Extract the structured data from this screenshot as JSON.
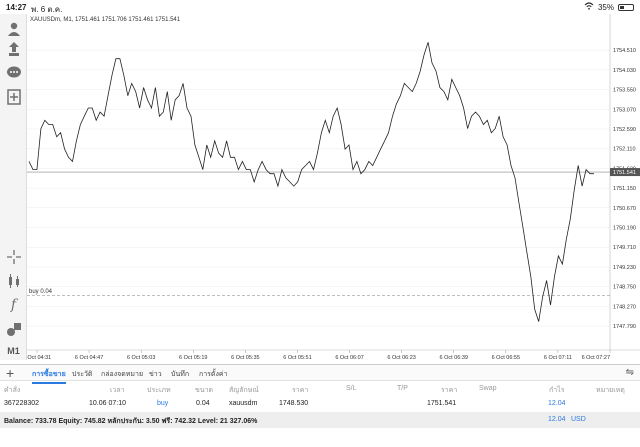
{
  "status": {
    "time": "14:27",
    "date": "พ. 6 ต.ค.",
    "battery": "35%"
  },
  "chart": {
    "symbol_line": "XAUUSDm, M1, 1751.461 1751.706 1751.461 1751.541",
    "order_line_label": "buy 0.04",
    "current_price_label": "1751.541",
    "timeframe": "M1"
  },
  "chart_data": {
    "type": "line",
    "symbol": "XAUUSDm",
    "ylim": [
      1747.5,
      1755.0
    ],
    "y_ticks": [
      "1754.510",
      "1754.030",
      "1753.550",
      "1753.070",
      "1752.590",
      "1752.110",
      "1751.630",
      "1751.150",
      "1750.670",
      "1750.190",
      "1749.710",
      "1749.230",
      "1748.750",
      "1748.270",
      "1747.790"
    ],
    "x_ticks": [
      "6 Oct 04:31",
      "6 Oct 04:47",
      "6 Oct 05:03",
      "6 Oct 05:19",
      "6 Oct 05:35",
      "6 Oct 05:51",
      "6 Oct 06:07",
      "6 Oct 06:23",
      "6 Oct 06:39",
      "6 Oct 06:55",
      "6 Oct 07:11",
      "6 Oct 07:27"
    ],
    "current_price": 1751.541,
    "buy_level": 1748.53,
    "x": [
      0,
      2,
      4,
      6,
      8,
      10,
      12,
      14,
      16,
      18,
      20,
      22,
      24,
      26,
      28,
      30,
      32,
      34,
      36,
      38,
      40,
      42,
      44,
      46,
      48,
      50,
      52,
      54,
      56,
      58,
      60,
      62,
      64,
      66,
      68,
      70,
      72,
      74,
      76,
      78,
      80,
      82,
      84,
      86,
      88,
      90,
      92,
      94,
      96,
      98,
      100,
      102,
      104,
      106,
      108,
      110,
      112,
      114,
      116,
      118,
      120,
      122,
      124,
      126,
      128,
      130,
      132,
      134,
      136,
      138,
      140,
      142,
      144,
      146,
      148,
      150,
      152,
      154,
      156,
      158,
      160,
      162,
      164,
      166,
      168,
      170,
      172,
      174,
      176,
      178,
      180,
      182,
      184,
      186,
      188,
      190,
      192,
      194,
      196,
      198,
      200,
      202,
      204,
      206,
      208,
      210,
      212,
      214,
      216,
      218,
      220,
      222,
      224,
      226,
      228,
      230,
      232,
      234,
      236,
      238,
      240,
      242,
      244,
      246,
      248,
      250,
      252,
      254,
      256,
      258,
      260,
      262,
      264,
      266,
      268,
      270,
      272,
      274,
      276,
      278,
      280,
      282,
      284,
      286
    ],
    "values": [
      1751.8,
      1751.6,
      1751.6,
      1752.6,
      1752.8,
      1752.7,
      1752.7,
      1752.4,
      1752.5,
      1752.1,
      1751.9,
      1751.8,
      1752.3,
      1752.7,
      1752.9,
      1753.1,
      1753.1,
      1752.8,
      1753.0,
      1752.9,
      1753.4,
      1753.9,
      1754.3,
      1754.3,
      1753.9,
      1753.4,
      1753.7,
      1753.5,
      1753.1,
      1753.6,
      1753.3,
      1753.1,
      1753.6,
      1752.9,
      1753.0,
      1753.5,
      1752.8,
      1753.3,
      1753.4,
      1753.7,
      1753.1,
      1752.9,
      1752.2,
      1751.9,
      1751.6,
      1752.2,
      1751.9,
      1752.3,
      1752.0,
      1751.9,
      1752.3,
      1751.9,
      1751.9,
      1751.6,
      1751.8,
      1751.6,
      1751.6,
      1751.3,
      1751.6,
      1751.8,
      1751.6,
      1751.5,
      1751.5,
      1751.2,
      1751.6,
      1751.4,
      1751.3,
      1751.2,
      1751.3,
      1751.6,
      1751.7,
      1751.8,
      1751.6,
      1752.0,
      1752.5,
      1752.8,
      1752.5,
      1752.9,
      1753.1,
      1752.7,
      1752.1,
      1752.2,
      1751.6,
      1751.8,
      1751.5,
      1751.6,
      1751.8,
      1751.7,
      1751.9,
      1752.1,
      1752.3,
      1752.5,
      1752.9,
      1753.2,
      1753.4,
      1753.7,
      1753.6,
      1753.5,
      1753.7,
      1754.0,
      1754.4,
      1754.7,
      1754.2,
      1754.0,
      1753.6,
      1753.5,
      1753.3,
      1753.8,
      1753.6,
      1753.4,
      1753.1,
      1752.6,
      1752.9,
      1753.0,
      1752.9,
      1752.7,
      1752.8,
      1752.5,
      1752.6,
      1752.9,
      1752.4,
      1752.2,
      1751.7,
      1751.4,
      1750.8,
      1750.2,
      1749.6,
      1749.0,
      1748.2,
      1747.9,
      1748.5,
      1748.9,
      1748.3,
      1749.0,
      1749.5,
      1749.3,
      1749.9,
      1750.4,
      1751.1,
      1751.7,
      1751.2,
      1751.6,
      1751.5,
      1751.5
    ]
  },
  "tabs": {
    "items": [
      "การซื้อขาย",
      "ประวัติ",
      "กล่องจดหมาย",
      "ข่าว",
      "บันทึก",
      "การตั้งค่า"
    ]
  },
  "table": {
    "headers": [
      "คำสั่ง",
      "เวลา",
      "ประเภท",
      "ขนาด",
      "สัญลักษณ์",
      "ราคา",
      "S/L",
      "T/P",
      "ราคา",
      "Swap",
      "กำไร",
      "หมายเหตุ"
    ],
    "row": {
      "order": "367228302",
      "time": "10.06 07:10",
      "type": "buy",
      "size": "0.04",
      "symbol": "xauusdm",
      "open_price": "1748.530",
      "current_price": "1751.541",
      "profit": "12.04"
    }
  },
  "footer": {
    "summary": "Balance: 733.78 Equity: 745.82 หลักประกัน: 3.50 ฟรี: 742.32 Level: 21 327.06%",
    "profit_total": "12.04",
    "currency": "USD"
  },
  "colors": {
    "accent": "#2a7ae2",
    "line": "#222222",
    "grid": "#ececec"
  }
}
